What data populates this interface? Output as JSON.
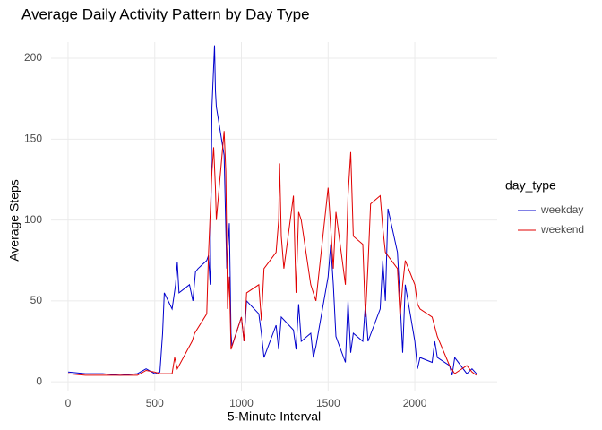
{
  "chart_data": {
    "type": "line",
    "title": "Average Daily Activity Pattern by Day Type",
    "x_label": "5-Minute Interval",
    "y_label": "Average Steps",
    "legend_title": "day_type",
    "xlim": [
      -98,
      2475
    ],
    "ylim": [
      -6,
      210
    ],
    "xticks": [
      0,
      500,
      1000,
      1500,
      2000
    ],
    "yticks": [
      0,
      50,
      100,
      150,
      200
    ],
    "grid": true,
    "legend_position": "right",
    "series": [
      {
        "name": "weekday",
        "color": "#0000cd",
        "x": [
          0,
          100,
          200,
          300,
          400,
          450,
          500,
          530,
          545,
          555,
          600,
          620,
          630,
          640,
          700,
          720,
          735,
          750,
          800,
          810,
          820,
          830,
          835,
          845,
          850,
          855,
          900,
          915,
          930,
          940,
          945,
          1000,
          1015,
          1030,
          1100,
          1115,
          1130,
          1200,
          1215,
          1230,
          1300,
          1315,
          1330,
          1345,
          1400,
          1415,
          1430,
          1500,
          1515,
          1530,
          1545,
          1600,
          1615,
          1630,
          1645,
          1700,
          1715,
          1730,
          1800,
          1815,
          1830,
          1845,
          1900,
          1915,
          1930,
          1945,
          2000,
          2015,
          2030,
          2100,
          2115,
          2130,
          2200,
          2215,
          2230,
          2300,
          2330,
          2355
        ],
        "values": [
          6,
          5,
          5,
          4,
          5,
          8,
          5,
          6,
          30,
          55,
          45,
          60,
          74,
          55,
          60,
          50,
          68,
          70,
          75,
          78,
          60,
          170,
          183,
          208,
          180,
          170,
          140,
          70,
          98,
          30,
          22,
          40,
          25,
          50,
          42,
          30,
          15,
          35,
          20,
          40,
          32,
          20,
          48,
          25,
          30,
          15,
          22,
          65,
          85,
          60,
          28,
          12,
          50,
          18,
          30,
          25,
          48,
          25,
          45,
          75,
          50,
          107,
          80,
          50,
          18,
          60,
          25,
          8,
          15,
          12,
          25,
          15,
          10,
          4,
          15,
          5,
          8,
          5
        ]
      },
      {
        "name": "weekend",
        "color": "#e00000",
        "x": [
          0,
          100,
          200,
          300,
          400,
          450,
          500,
          530,
          600,
          615,
          630,
          700,
          715,
          730,
          800,
          810,
          830,
          840,
          850,
          855,
          900,
          910,
          920,
          930,
          940,
          1000,
          1015,
          1030,
          1100,
          1115,
          1130,
          1200,
          1215,
          1220,
          1230,
          1245,
          1300,
          1315,
          1330,
          1345,
          1400,
          1415,
          1430,
          1500,
          1530,
          1545,
          1600,
          1615,
          1630,
          1645,
          1700,
          1715,
          1730,
          1745,
          1800,
          1815,
          1830,
          1900,
          1915,
          1930,
          1945,
          2000,
          2015,
          2030,
          2100,
          2130,
          2200,
          2230,
          2300,
          2330,
          2355
        ],
        "values": [
          5,
          4,
          4,
          4,
          4,
          7,
          6,
          5,
          5,
          15,
          8,
          22,
          25,
          30,
          42,
          78,
          130,
          145,
          120,
          100,
          155,
          130,
          45,
          65,
          20,
          40,
          25,
          55,
          60,
          38,
          70,
          80,
          100,
          135,
          90,
          70,
          115,
          55,
          105,
          100,
          60,
          55,
          50,
          120,
          70,
          105,
          60,
          115,
          142,
          90,
          85,
          40,
          72,
          110,
          115,
          95,
          80,
          70,
          40,
          60,
          75,
          60,
          48,
          45,
          40,
          28,
          10,
          5,
          10,
          6,
          4
        ]
      }
    ]
  }
}
